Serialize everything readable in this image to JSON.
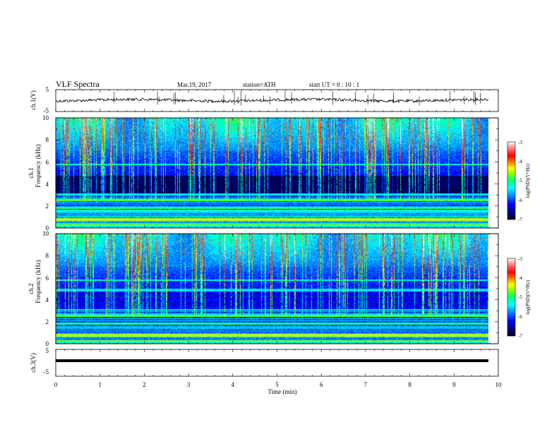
{
  "header": {
    "title": "VLF  Spectra",
    "date": "Mar.19, 2017",
    "station": "station=ATH",
    "start_ut": "start  UT  =   0  : 10 : 1"
  },
  "x_axis": {
    "label": "Time  (min)",
    "range": [
      0,
      10
    ],
    "ticks": [
      "0",
      "1",
      "2",
      "3",
      "4",
      "5",
      "6",
      "7",
      "8",
      "9",
      "10"
    ]
  },
  "panels": {
    "ch1_voltage": {
      "ylabel": "ch.1(V)",
      "ticks": [
        "5",
        "-5"
      ],
      "range": [
        -5,
        5
      ]
    },
    "ch1_spectrogram": {
      "ylabel_line1": "ch.1",
      "ylabel_line2": "Frequency  (kHz)",
      "ticks": [
        "0",
        "2",
        "4",
        "6",
        "8",
        "10"
      ],
      "range": [
        0,
        10
      ]
    },
    "ch2_spectrogram": {
      "ylabel_line1": "ch.2",
      "ylabel_line2": "Frequency  (kHz)",
      "ticks": [
        "0",
        "2",
        "4",
        "6",
        "8",
        "10"
      ],
      "range": [
        0,
        10
      ]
    },
    "ch3_voltage": {
      "ylabel": "ch.3(V)",
      "ticks": [
        "5",
        "-5"
      ],
      "range": [
        -5,
        5
      ]
    }
  },
  "colorbar": {
    "label": "log(PSD)(V²/Hz)",
    "ticks": [
      "-3",
      "-4",
      "-5",
      "-6",
      "-7"
    ],
    "range": [
      -7,
      -3
    ],
    "colors": [
      "#000000",
      "#000080",
      "#0000ff",
      "#0080ff",
      "#00ffff",
      "#00ff80",
      "#80ff00",
      "#ffff00",
      "#ff8000",
      "#ff0000",
      "#ff8080",
      "#ffffff"
    ]
  },
  "chart_data": [
    {
      "type": "line",
      "title": "VLF  Spectra",
      "xlabel": "Time  (min)",
      "ylabel": "ch.1(V)",
      "xlim": [
        0,
        10
      ],
      "ylim": [
        -5,
        5
      ],
      "series": [
        {
          "x": [
            0,
            9.8
          ],
          "y": [
            0,
            0
          ]
        }
      ]
    },
    {
      "type": "heatmap",
      "xlabel": "Time  (min)",
      "ylabel": "Frequency  (kHz)",
      "xlim": [
        0,
        9.8
      ],
      "ylim": [
        0,
        10
      ],
      "colorbar_range": [
        -7,
        -3
      ]
    },
    {
      "type": "heatmap",
      "xlabel": "Time  (min)",
      "ylabel": "Frequency  (kHz)",
      "xlim": [
        0,
        9.8
      ],
      "ylim": [
        0,
        10
      ],
      "colorbar_range": [
        -7,
        -3
      ]
    },
    {
      "type": "line",
      "xlabel": "Time  (min)",
      "ylabel": "ch.3(V)",
      "xlim": [
        0,
        10
      ],
      "ylim": [
        -5,
        5
      ],
      "series": [
        {
          "x": [
            0,
            9.8
          ],
          "y": [
            0,
            0
          ]
        }
      ]
    }
  ]
}
